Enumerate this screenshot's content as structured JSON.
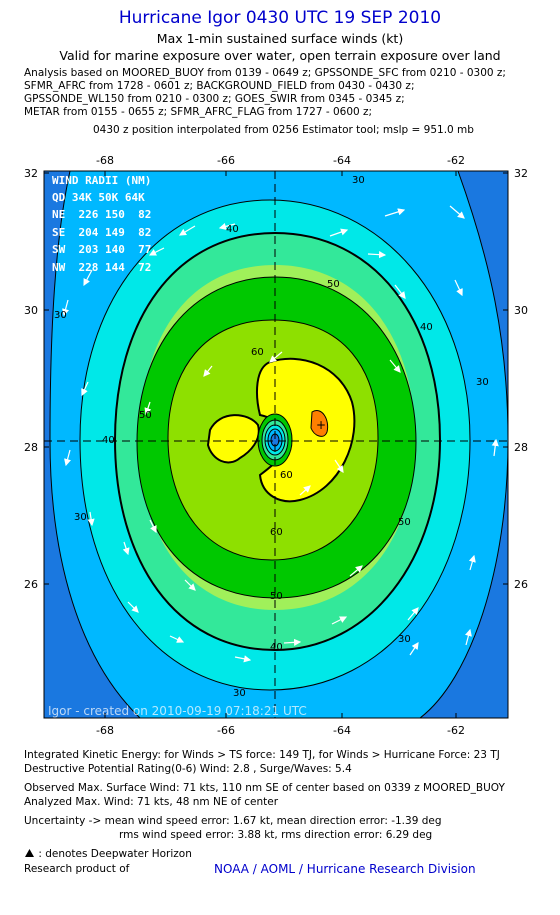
{
  "header": {
    "title": "Hurricane Igor 0430 UTC 19 SEP 2010",
    "subtitle1": "Max 1-min sustained surface winds (kt)",
    "subtitle2": "Valid for marine exposure over water, open terrain exposure over land",
    "analysis_lines": [
      "Analysis based on MOORED_BUOY from 0139 - 0649 z; GPSSONDE_SFC from 0210 - 0300 z;",
      "SFMR_AFRC from 1728 - 0601 z; BACKGROUND_FIELD from 0430 - 0430 z;",
      "GPSSONDE_WL150 from 0210 - 0300 z; GOES_SWIR from 0345 - 0345 z;",
      "METAR from 0155 - 0655 z; SFMR_AFRC_FLAG from 1727 - 0600 z;"
    ],
    "interp": "0430 z position interpolated from 0256 Estimator tool; mslp = 951.0 mb"
  },
  "map": {
    "lon_ticks": [
      "-68",
      "-66",
      "-64",
      "-62"
    ],
    "lat_ticks": [
      "32",
      "30",
      "28",
      "26"
    ],
    "wind_radii": {
      "title": "WIND RADII (NM)",
      "header": "QD 34K 50K 64K",
      "rows": [
        "NE  226 150  82",
        "SE  204 149  82",
        "SW  203 140  77",
        "NW  228 144  72"
      ]
    },
    "contour_labels": [
      "30",
      "40",
      "50",
      "60",
      "60",
      "30",
      "40",
      "50",
      "60",
      "50",
      "40",
      "30",
      "30",
      "40",
      "50",
      "30",
      "30"
    ],
    "credit": "Igor - created on 2010-09-19 07:18:21 UTC",
    "colors": {
      "c20": "#1a78e0",
      "c30": "#00b8ff",
      "c40": "#00e8e8",
      "c50": "#33e89a",
      "c55": "#a0f05a",
      "c60": "#00c800",
      "c64": "#8ee000",
      "c70": "#ffff00",
      "orange": "#ff7f00"
    }
  },
  "footer": {
    "ike": "Integrated Kinetic Energy: for Winds > TS force: 149 TJ, for Winds > Hurricane Force: 23 TJ",
    "dpr": "Destructive Potential Rating(0-6)   Wind: 2.8 , Surge/Waves: 5.4",
    "obs": "Observed Max. Surface Wind: 71 kts, 110 nm SE of center based on 0339 z MOORED_BUOY",
    "analyzed": "Analyzed Max. Wind: 71 kts, 48 nm NE of center",
    "uncert1": "Uncertainty -> mean wind speed error: 1.67 kt,   mean direction error:  -1.39 deg",
    "uncert2": "rms wind speed error: 3.88 kt,   rms direction error: 6.29 deg",
    "legend": ": denotes Deepwater Horizon",
    "research": "Research product of",
    "noaa": "NOAA / AOML / Hurricane Research Division"
  }
}
